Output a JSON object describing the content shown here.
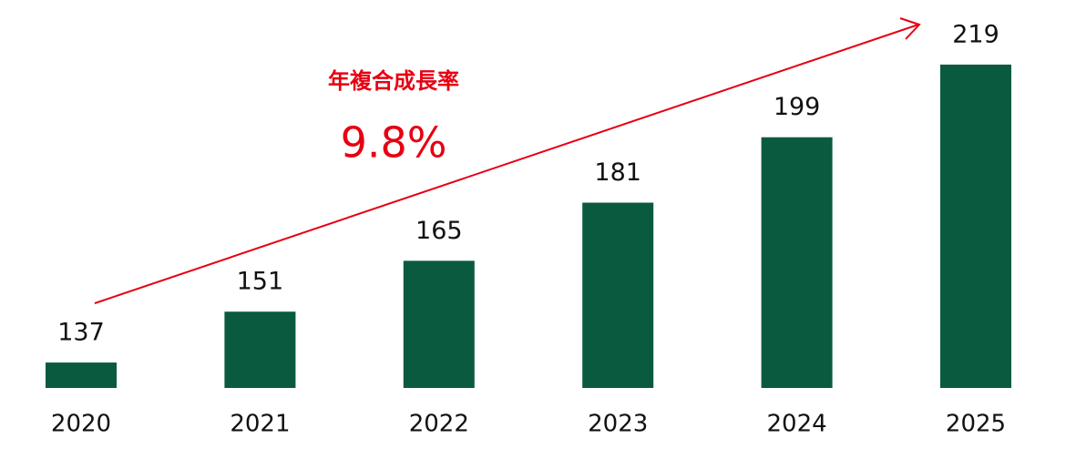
{
  "chart_data": {
    "type": "bar",
    "categories": [
      "2020",
      "2021",
      "2022",
      "2023",
      "2024",
      "2025"
    ],
    "values": [
      137,
      151,
      165,
      181,
      199,
      219
    ],
    "color": "#0a5a40",
    "ylim": [
      130,
      227
    ],
    "annotations": [
      "年複合成長率",
      "9.8%"
    ],
    "arrow_color": "#e60012"
  }
}
